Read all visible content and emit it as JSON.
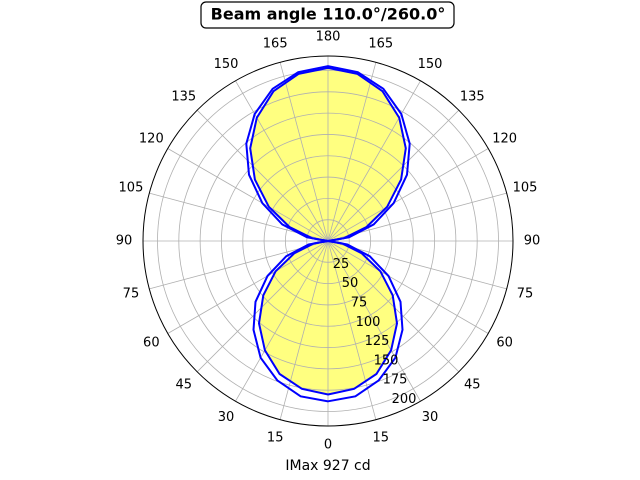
{
  "chart_data": {
    "type": "polar",
    "title": "Beam angle 110.0°/260.0°",
    "xlabel": "IMax 927 cd",
    "theta": [
      0,
      10,
      20,
      30,
      40,
      50,
      60,
      70,
      80,
      90,
      100,
      110,
      120,
      130,
      140,
      150,
      160,
      170,
      180,
      190,
      200,
      210,
      220,
      230,
      240,
      250,
      260,
      270,
      280,
      290,
      300,
      310,
      320,
      330,
      340,
      350
    ],
    "series": [
      {
        "color": "#0000ff",
        "values": [
          188,
          185,
          174,
          158,
          136,
          111,
          82,
          52,
          23,
          0,
          25,
          57,
          89,
          121,
          149,
          172,
          190,
          201,
          205,
          201,
          190,
          172,
          149,
          121,
          89,
          57,
          25,
          0,
          23,
          52,
          82,
          111,
          136,
          158,
          174,
          185
        ]
      },
      {
        "color": "#0000ff",
        "fill": "#ffff80",
        "values": [
          180,
          176,
          166,
          148,
          126,
          99,
          71,
          42,
          17,
          0,
          19,
          48,
          80,
          112,
          142,
          167,
          187,
          199,
          203,
          199,
          187,
          167,
          142,
          112,
          80,
          48,
          19,
          0,
          17,
          42,
          71,
          99,
          126,
          148,
          166,
          176
        ]
      }
    ],
    "rlim": [
      0,
      217
    ],
    "rticks": [
      25,
      50,
      75,
      100,
      125,
      150,
      175,
      200
    ],
    "rlabel_angle": 25,
    "thetaticks": [
      0,
      15,
      30,
      45,
      60,
      75,
      90,
      105,
      120,
      135,
      150,
      165,
      180,
      {
        "value": 195,
        "label": "165"
      },
      {
        "value": 210,
        "label": "150"
      },
      {
        "value": 225,
        "label": "135"
      },
      {
        "value": 240,
        "label": "120"
      },
      {
        "value": 255,
        "label": "105"
      },
      {
        "value": 270,
        "label": "90"
      },
      {
        "value": 285,
        "label": "75"
      },
      {
        "value": 300,
        "label": "60"
      },
      {
        "value": 315,
        "label": "45"
      },
      {
        "value": 330,
        "label": "30"
      },
      {
        "value": 345,
        "label": "15"
      }
    ],
    "grid": true
  }
}
